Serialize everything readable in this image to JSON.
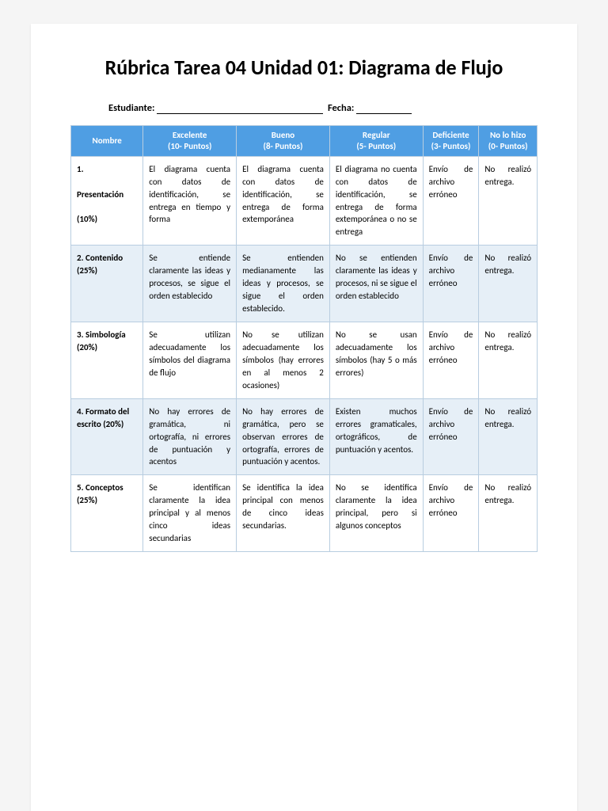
{
  "title": "Rúbrica Tarea 04 Unidad 01: Diagrama de Flujo",
  "form": {
    "student_label": "Estudiante:",
    "date_label": "Fecha:"
  },
  "table": {
    "header_bg": "#4f9ee3",
    "header_fg": "#ffffff",
    "border_color": "#b8cde0",
    "alt_row_bg": "#e6eff7",
    "columns": [
      {
        "label": "Nombre",
        "sub": ""
      },
      {
        "label": "Excelente",
        "sub": "(10- Puntos)"
      },
      {
        "label": "Bueno",
        "sub": "(8- Puntos)"
      },
      {
        "label": "Regular",
        "sub": "(5- Puntos)"
      },
      {
        "label": "Deficiente",
        "sub": "(3- Puntos)"
      },
      {
        "label": "No lo hizo",
        "sub": "(0- Puntos)"
      }
    ],
    "rows": [
      {
        "name_line1": "1.",
        "name_line2": "Presentación",
        "name_line3": "(10%)",
        "c2": "El diagrama cuenta con datos de identificación, se entrega en tiempo y forma",
        "c3": "El diagrama cuenta con datos de identificación, se entrega de forma extemporánea",
        "c4": "El diagrama no cuenta con datos de identificación, se entrega de forma extemporánea o no se entrega",
        "c5": "Envío de archivo erróneo",
        "c6": "No realizó entrega."
      },
      {
        "name_line1": "2. Contenido (25%)",
        "c2": "Se entiende claramente las ideas y procesos, se sigue el orden establecido",
        "c3": "Se entienden medianamente las ideas y procesos, se sigue el orden establecido.",
        "c4": "No se entienden claramente las ideas y procesos, ni se sigue el orden establecido",
        "c5": "Envío de archivo erróneo",
        "c6": "No realizó entrega."
      },
      {
        "name_line1": "3. Simbología (20%)",
        "c2": "Se utilizan adecuadamente los símbolos del diagrama de flujo",
        "c3": "No se utilizan adecuadamente los símbolos (hay errores en al menos 2 ocasiones)",
        "c4": "No se usan adecuadamente los símbolos (hay 5 o más errores)",
        "c5": "Envío de archivo erróneo",
        "c6": "No realizó entrega."
      },
      {
        "name_line1": "4. Formato del escrito (20%)",
        "c2": "No hay errores de gramática, ni ortografía, ni errores de puntuación y acentos",
        "c3": "No hay errores de gramática, pero se observan errores de ortografía, errores de puntuación y acentos.",
        "c4": "Existen muchos errores gramaticales, ortográficos, de puntuación y acentos.",
        "c5": "Envío de archivo erróneo",
        "c6": "No realizó entrega."
      },
      {
        "name_line1": "5. Conceptos (25%)",
        "c2": "Se identifican claramente la idea principal y al menos cinco ideas secundarias",
        "c3": "Se identifica la idea principal con menos de cinco ideas secundarias.",
        "c4": "No se identifica claramente la idea principal, pero si algunos conceptos",
        "c5": "Envío de archivo erróneo",
        "c6": "No realizó entrega."
      }
    ]
  }
}
